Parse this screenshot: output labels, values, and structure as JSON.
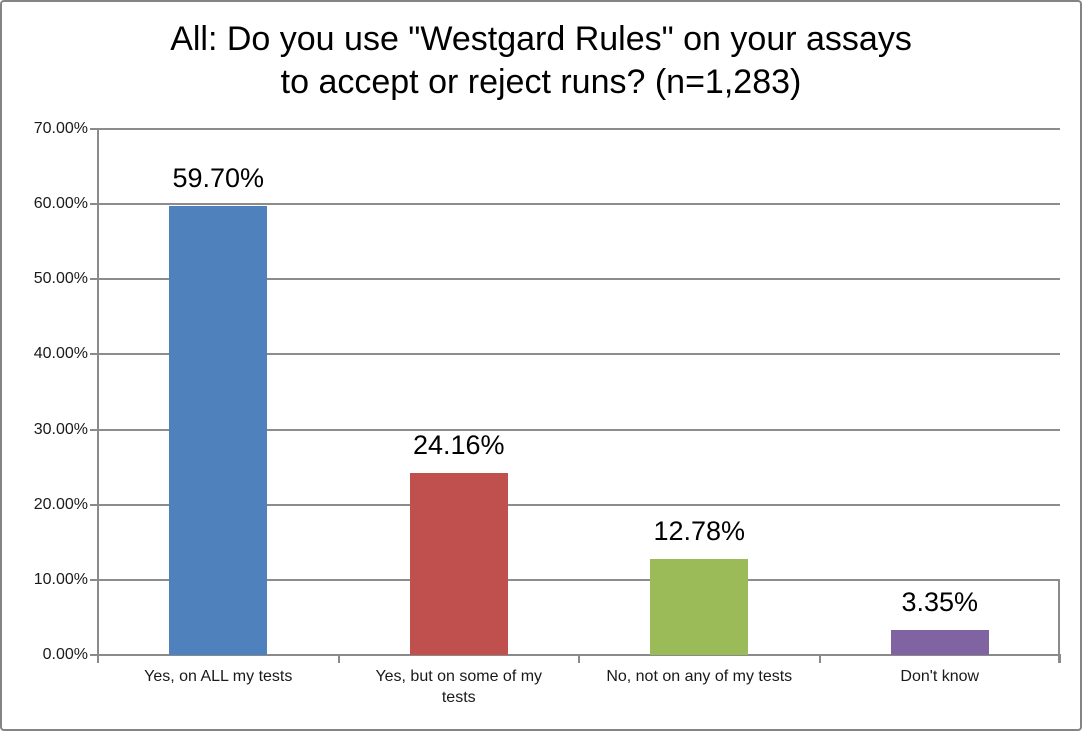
{
  "window": {
    "background": "#ffffff",
    "border_color": "#848484"
  },
  "chart_data": {
    "type": "bar",
    "title": "All: Do you use \"Westgard Rules\" on your assays to accept or reject runs? (n=1,283)",
    "title_lines": [
      "All: Do you use \"Westgard Rules\" on your assays",
      "to accept or reject runs? (n=1,283)"
    ],
    "categories": [
      "Yes, on ALL my tests",
      "Yes, but on  some of my tests",
      "No, not on any of my tests",
      "Don't know"
    ],
    "category_label_lines": [
      [
        "Yes, on ALL my tests"
      ],
      [
        "Yes, but on  some of my",
        "tests"
      ],
      [
        "No, not on any of my tests"
      ],
      [
        "Don't know"
      ]
    ],
    "values": [
      59.7,
      24.16,
      12.78,
      3.35
    ],
    "data_labels": [
      "59.70%",
      "24.16%",
      "12.78%",
      "3.35%"
    ],
    "bar_colors": [
      "#4f81bd",
      "#c0504d",
      "#9bbb59",
      "#8064a2"
    ],
    "xlabel": "",
    "ylabel": "",
    "ylim": [
      0,
      70
    ],
    "ytick_step": 10,
    "ytick_labels": [
      "0.00%",
      "10.00%",
      "20.00%",
      "30.00%",
      "40.00%",
      "50.00%",
      "60.00%",
      "70.00%"
    ],
    "grid": true,
    "gridline_color": "#8c8c8c",
    "axis_color": "#8a8a8a",
    "legend": "none"
  }
}
